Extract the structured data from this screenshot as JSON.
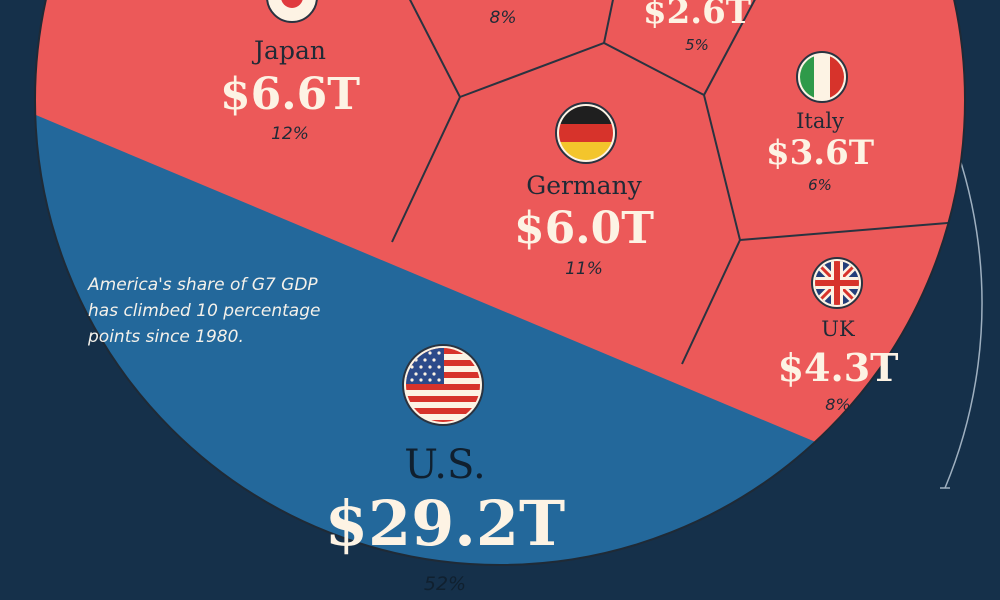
{
  "colors": {
    "background": "#15304a",
    "other_g7": "#ec5959",
    "us": "#23689b",
    "divider": "#2a3340",
    "value_text": "#fdf3e4"
  },
  "annotation": {
    "lines": [
      "America's share of G7 GDP",
      "has climbed 10 percentage",
      "points since 1980."
    ]
  },
  "chart_data": {
    "type": "voronoi-pie",
    "title": "",
    "items": [
      {
        "key": "japan",
        "name": "Japan",
        "value_label": "$6.6T",
        "value": 6.6,
        "share_label": "12%",
        "share": 12,
        "flag": "japan-flag-icon"
      },
      {
        "key": "canada",
        "name": "",
        "value_label": "",
        "value": null,
        "share_label": "8%",
        "share": 8,
        "flag": ""
      },
      {
        "key": "france",
        "name": "",
        "value_label": "$2.6T",
        "value": 2.6,
        "share_label": "5%",
        "share": 5,
        "flag": ""
      },
      {
        "key": "germany",
        "name": "Germany",
        "value_label": "$6.0T",
        "value": 6.0,
        "share_label": "11%",
        "share": 11,
        "flag": "germany-flag-icon"
      },
      {
        "key": "italy",
        "name": "Italy",
        "value_label": "$3.6T",
        "value": 3.6,
        "share_label": "6%",
        "share": 6,
        "flag": "italy-flag-icon"
      },
      {
        "key": "uk",
        "name": "UK",
        "value_label": "$4.3T",
        "value": 4.3,
        "share_label": "8%",
        "share": 8,
        "flag": "uk-flag-icon"
      },
      {
        "key": "us",
        "name": "U.S.",
        "value_label": "$29.2T",
        "value": 29.2,
        "share_label": "52%",
        "share": 52,
        "flag": "us-flag-icon"
      }
    ]
  }
}
